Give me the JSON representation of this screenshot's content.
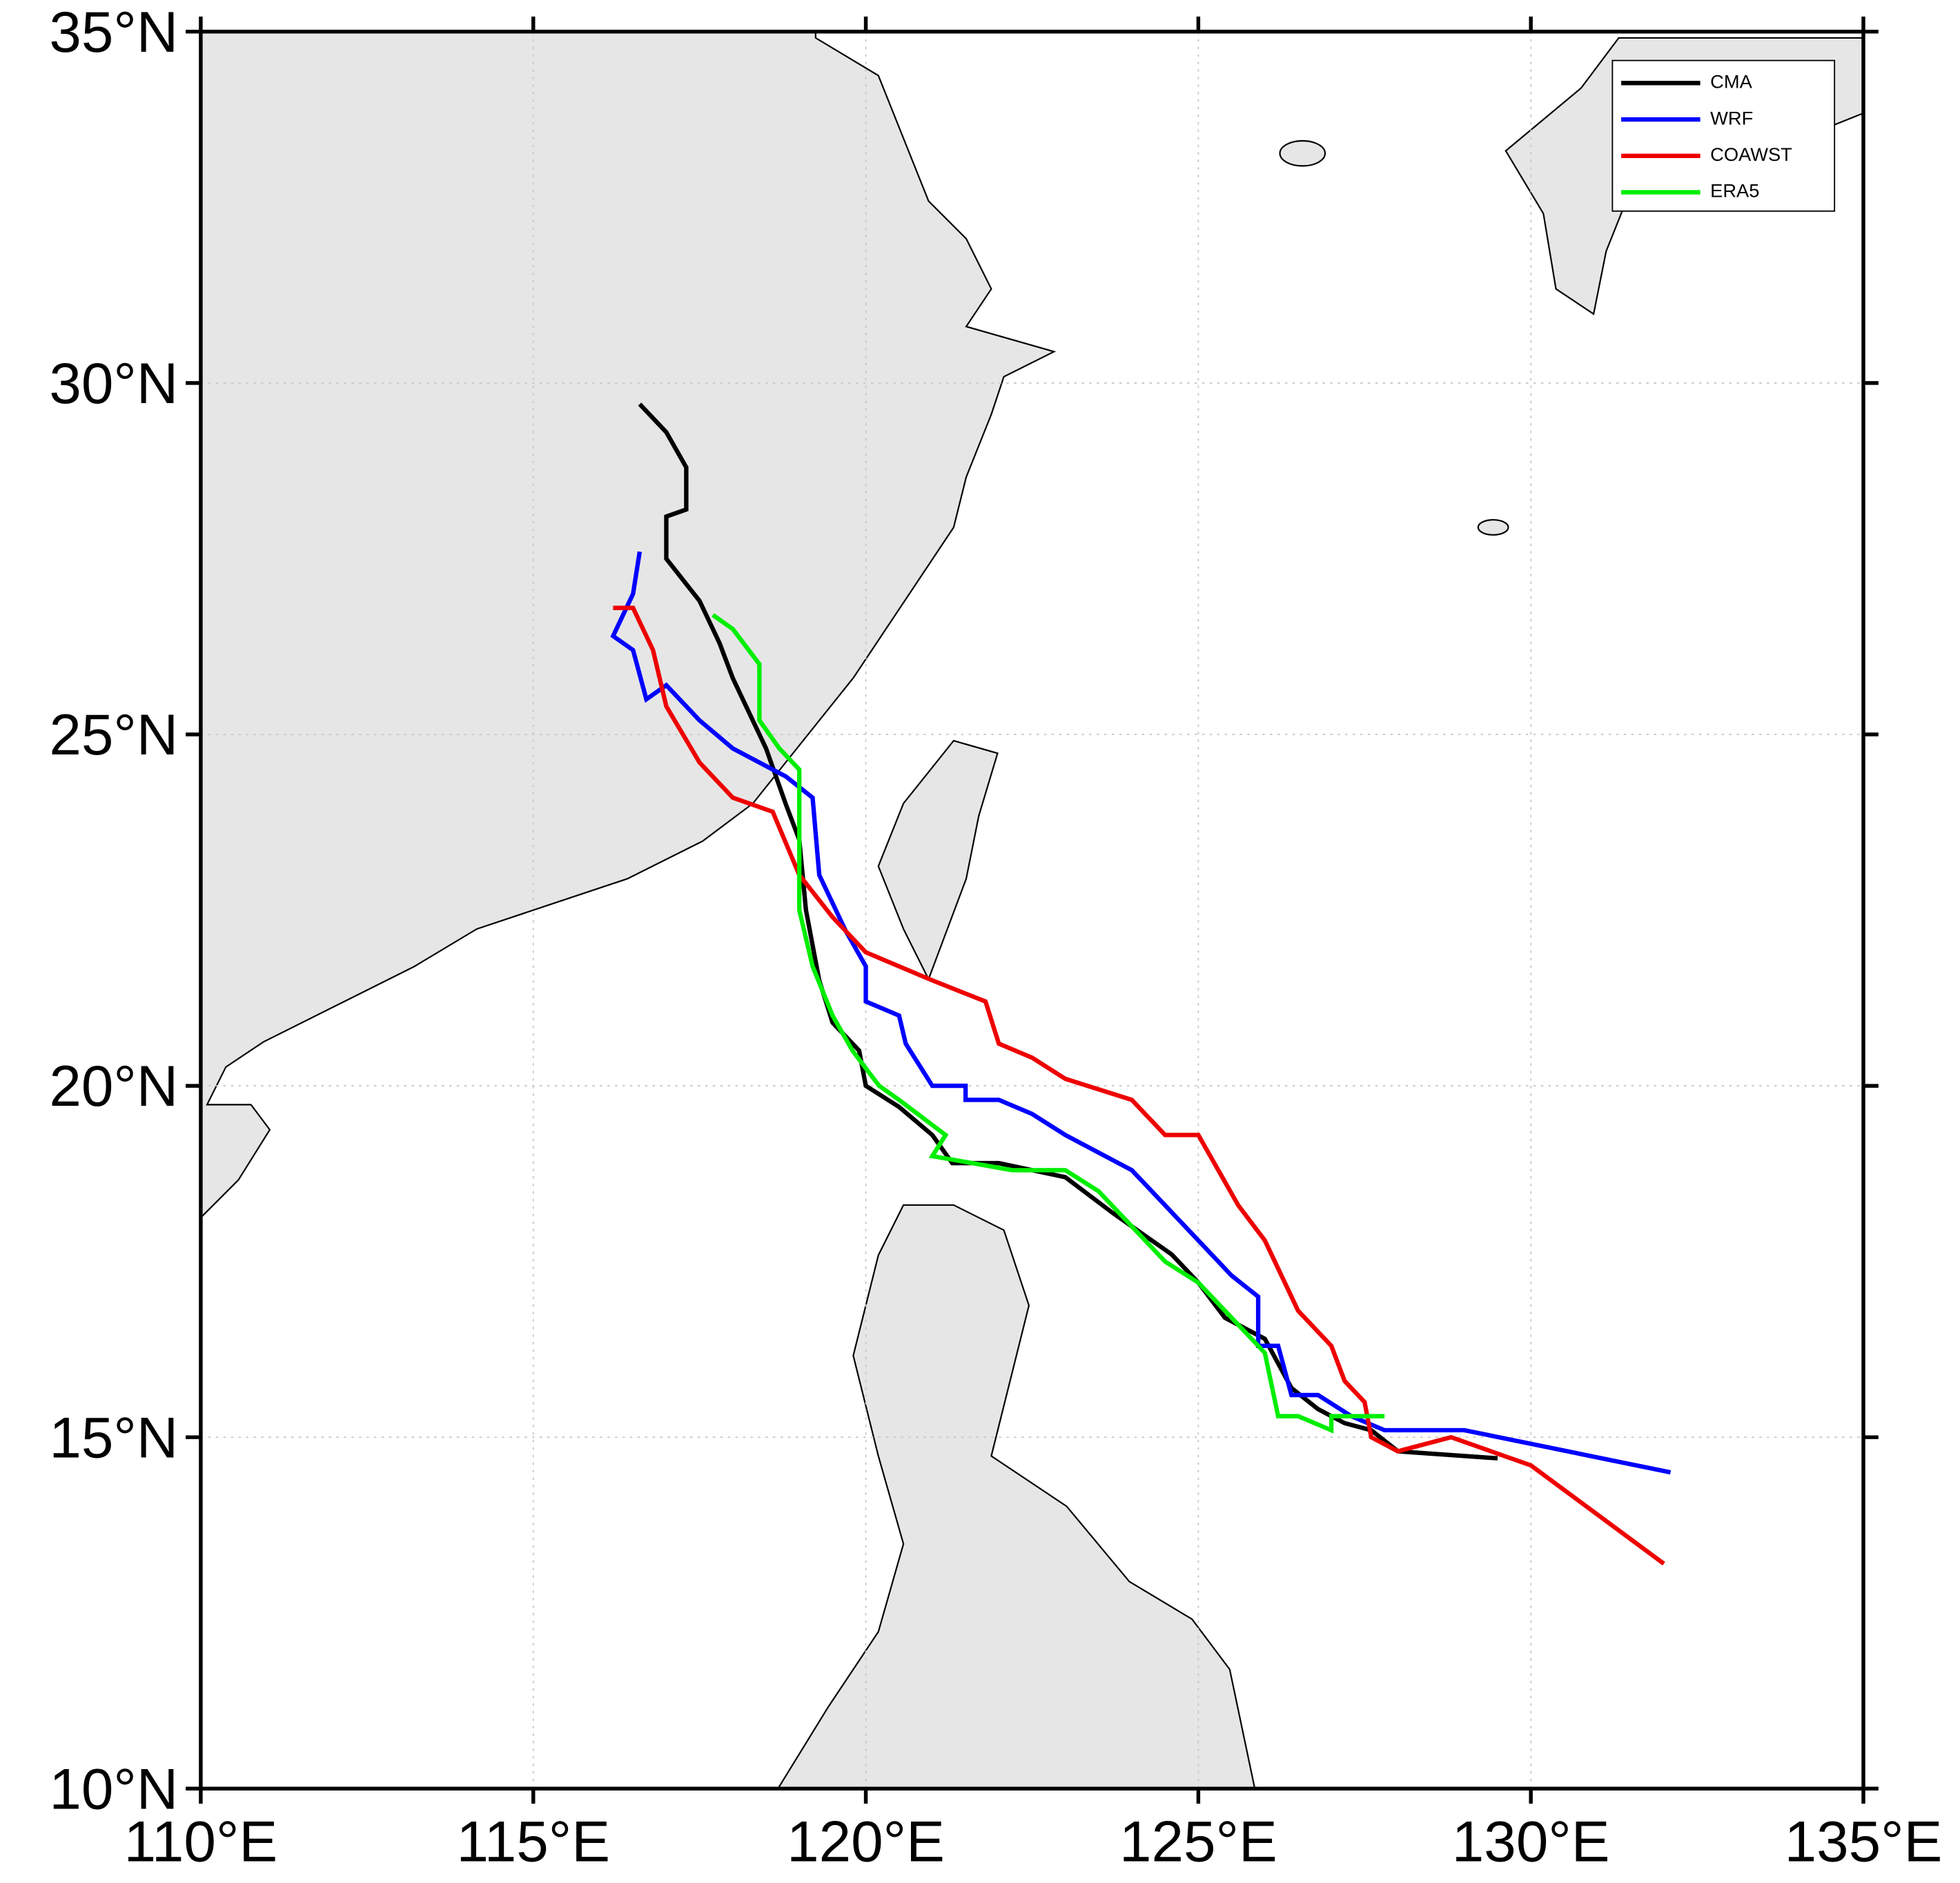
{
  "chart_data": {
    "type": "line",
    "xlim": [
      110,
      135
    ],
    "ylim": [
      10,
      35
    ],
    "xticks": [
      {
        "value": 110,
        "label": "110°E"
      },
      {
        "value": 115,
        "label": "115°E"
      },
      {
        "value": 120,
        "label": "120°E"
      },
      {
        "value": 125,
        "label": "125°E"
      },
      {
        "value": 130,
        "label": "130°E"
      },
      {
        "value": 135,
        "label": "135°E"
      }
    ],
    "yticks": [
      {
        "value": 10,
        "label": "10°N"
      },
      {
        "value": 15,
        "label": "15°N"
      },
      {
        "value": 20,
        "label": "20°N"
      },
      {
        "value": 25,
        "label": "25°N"
      },
      {
        "value": 30,
        "label": "30°N"
      },
      {
        "value": 35,
        "label": "35°N"
      }
    ],
    "grid": true,
    "legend": "upper right",
    "series": [
      {
        "name": "CMA",
        "color": "#000000",
        "x": [
          129.5,
          128.0,
          127.6,
          127.2,
          126.8,
          126.4,
          126.0,
          125.4,
          125.0,
          124.6,
          123.7,
          123.0,
          122.0,
          121.3,
          121.0,
          120.5,
          120.0,
          119.9,
          119.5,
          119.3,
          119.1,
          119.0,
          118.8,
          118.5,
          118.0,
          117.8,
          117.5,
          117.0,
          117.0,
          117.3,
          117.3,
          117.0,
          116.6
        ],
        "values": [
          14.7,
          14.8,
          15.1,
          15.2,
          15.4,
          15.7,
          16.4,
          16.7,
          17.2,
          17.6,
          18.2,
          18.7,
          18.9,
          18.9,
          19.3,
          19.7,
          20.0,
          20.5,
          20.9,
          21.5,
          22.5,
          23.5,
          24.0,
          24.8,
          25.8,
          26.3,
          26.9,
          27.5,
          28.1,
          28.2,
          28.8,
          29.3,
          29.7
        ]
      },
      {
        "name": "WRF",
        "color": "#0000ff",
        "x": [
          132.1,
          129.0,
          127.8,
          127.3,
          126.8,
          126.4,
          126.2,
          125.9,
          125.9,
          125.5,
          125.0,
          124.5,
          124.0,
          123.0,
          122.5,
          122.0,
          121.5,
          121.5,
          121.0,
          120.6,
          120.5,
          120.0,
          120.0,
          119.7,
          119.3,
          119.2,
          118.8,
          118.0,
          117.5,
          117.0,
          116.7,
          116.5,
          116.2,
          116.5,
          116.6
        ],
        "values": [
          14.5,
          15.1,
          15.1,
          15.3,
          15.6,
          15.6,
          16.3,
          16.3,
          17.0,
          17.3,
          17.8,
          18.3,
          18.8,
          19.3,
          19.6,
          19.8,
          19.8,
          20.0,
          20.0,
          20.6,
          21.0,
          21.2,
          21.7,
          22.2,
          23.0,
          24.1,
          24.4,
          24.8,
          25.2,
          25.7,
          25.5,
          26.2,
          26.4,
          27.0,
          27.6
        ]
      },
      {
        "name": "COAWST",
        "color": "#ee0000",
        "x": [
          132.0,
          130.0,
          128.8,
          128.0,
          127.6,
          127.5,
          127.2,
          127.0,
          126.5,
          126.0,
          125.6,
          125.0,
          124.5,
          124.0,
          123.0,
          122.5,
          122.0,
          121.8,
          121.0,
          120.0,
          119.5,
          119.0,
          118.6,
          118.0,
          117.5,
          117.0,
          116.8,
          116.5,
          116.2
        ],
        "values": [
          13.2,
          14.6,
          15.0,
          14.8,
          15.0,
          15.5,
          15.8,
          16.3,
          16.8,
          17.8,
          18.3,
          19.3,
          19.3,
          19.8,
          20.1,
          20.4,
          20.6,
          21.2,
          21.5,
          21.9,
          22.4,
          23.0,
          23.9,
          24.1,
          24.6,
          25.4,
          26.2,
          26.8,
          26.8
        ]
      },
      {
        "name": "ERA5",
        "color": "#00ee00",
        "x": [
          127.8,
          127.0,
          127.0,
          126.5,
          126.2,
          126.0,
          125.5,
          125.0,
          124.5,
          124.0,
          123.5,
          123.0,
          122.2,
          121.0,
          121.2,
          120.5,
          120.2,
          119.8,
          119.5,
          119.2,
          119.0,
          119.0,
          119.0,
          118.7,
          118.4,
          118.4,
          118.0,
          117.7
        ],
        "values": [
          15.3,
          15.3,
          15.1,
          15.3,
          15.3,
          16.2,
          16.7,
          17.2,
          17.5,
          18.0,
          18.5,
          18.8,
          18.8,
          19.0,
          19.3,
          19.8,
          20.0,
          20.5,
          21.0,
          21.7,
          22.5,
          23.5,
          24.5,
          24.8,
          25.2,
          26.0,
          26.5,
          26.7
        ]
      }
    ]
  }
}
